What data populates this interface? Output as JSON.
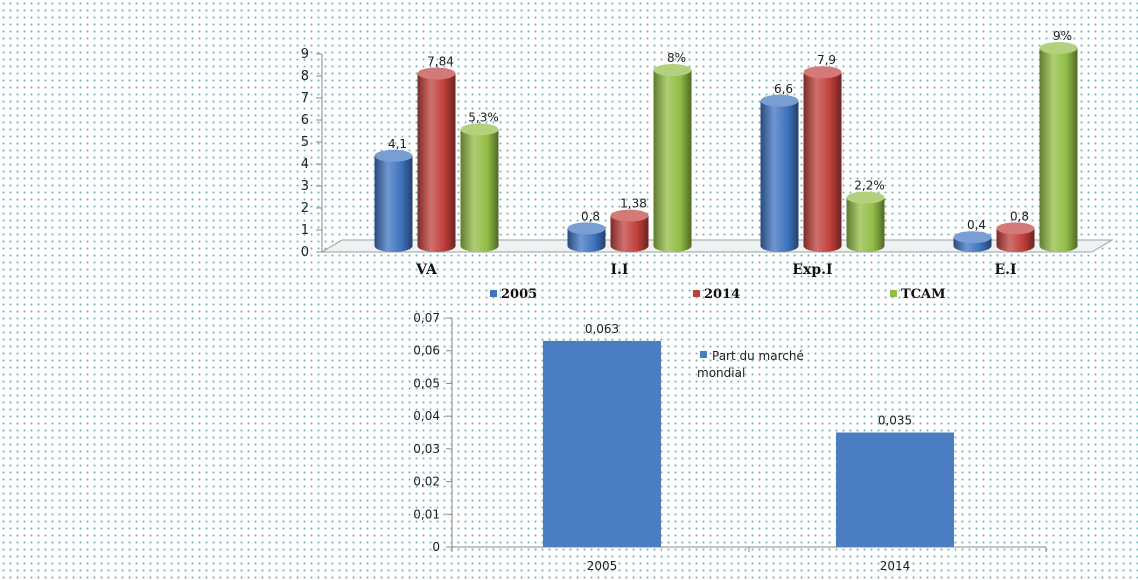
{
  "chart_data": [
    {
      "type": "bar",
      "categories": [
        "VA",
        "I.I",
        "Exp.I",
        "E.I"
      ],
      "series": [
        {
          "name": "2005",
          "values": [
            4.1,
            0.8,
            6.6,
            0.4
          ],
          "labels": [
            "4,1",
            "0,8",
            "6,6",
            "0,4"
          ],
          "color": "#3f74c0"
        },
        {
          "name": "2014",
          "values": [
            7.84,
            1.38,
            7.9,
            0.8
          ],
          "labels": [
            "7,84",
            "1,38",
            "7,9",
            "0,8"
          ],
          "color": "#c0403c"
        },
        {
          "name": "TCAM",
          "values": [
            5.3,
            8,
            2.2,
            9
          ],
          "labels": [
            "5,3%",
            "8%",
            "2,2%",
            "9%"
          ],
          "color": "#92bd45"
        }
      ],
      "yticks": [
        "0",
        "1",
        "2",
        "3",
        "4",
        "5",
        "6",
        "7",
        "8",
        "9"
      ],
      "ylim": [
        0,
        9
      ],
      "legend_position": "bottom",
      "style": "3d-cylinder"
    },
    {
      "type": "bar",
      "categories": [
        "2005",
        "2014"
      ],
      "series": [
        {
          "name": "Part du marché mondial",
          "values": [
            0.063,
            0.035
          ],
          "labels": [
            "0,063",
            "0,035"
          ],
          "color": "#4a7dc2"
        }
      ],
      "legend_lines": [
        "Part du marché",
        "mondial"
      ],
      "yticks": [
        "0",
        "0,01",
        "0,02",
        "0,03",
        "0,04",
        "0,05",
        "0,06",
        "0,07"
      ],
      "ylim": [
        0,
        0.07
      ],
      "legend_position": "top-right"
    }
  ]
}
